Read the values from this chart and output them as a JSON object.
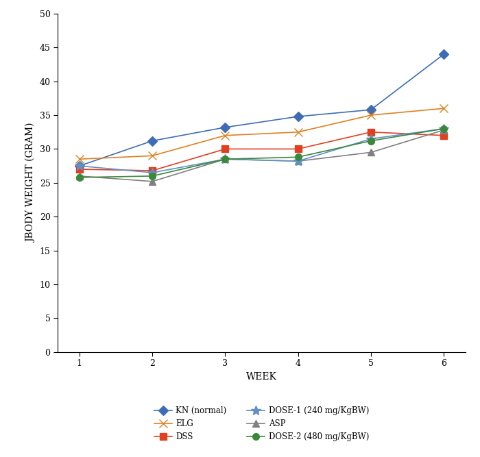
{
  "weeks": [
    1,
    2,
    3,
    4,
    5,
    6
  ],
  "series_order": [
    "KN (normal)",
    "DSS",
    "ASP",
    "ELG",
    "DOSE-1 (240 mg/KgBW)",
    "DOSE-2 (480 mg/KgBW)"
  ],
  "series": {
    "KN (normal)": {
      "values": [
        27.5,
        31.2,
        33.2,
        34.8,
        35.8,
        44.0
      ],
      "color": "#3e6db5",
      "marker": "D",
      "markersize": 7,
      "linewidth": 1.2
    },
    "DSS": {
      "values": [
        27.0,
        26.8,
        30.0,
        30.0,
        32.5,
        32.0
      ],
      "color": "#e04020",
      "marker": "s",
      "markersize": 7,
      "linewidth": 1.2
    },
    "ASP": {
      "values": [
        26.0,
        25.2,
        28.5,
        28.2,
        29.5,
        32.8
      ],
      "color": "#808080",
      "marker": "^",
      "markersize": 7,
      "linewidth": 1.2
    },
    "ELG": {
      "values": [
        28.5,
        29.0,
        32.0,
        32.5,
        35.0,
        36.0
      ],
      "color": "#e08020",
      "marker": "x",
      "markersize": 8,
      "linewidth": 1.2
    },
    "DOSE-1 (240 mg/KgBW)": {
      "values": [
        27.5,
        26.5,
        28.5,
        28.2,
        31.5,
        33.0
      ],
      "color": "#6090c8",
      "marker": "*",
      "markersize": 10,
      "linewidth": 1.2
    },
    "DOSE-2 (480 mg/KgBW)": {
      "values": [
        25.8,
        26.0,
        28.5,
        28.8,
        31.2,
        33.0
      ],
      "color": "#3a883a",
      "marker": "o",
      "markersize": 7,
      "linewidth": 1.2
    }
  },
  "legend_order": [
    0,
    3,
    1,
    4,
    2,
    5
  ],
  "xlabel": "WEEK",
  "ylabel": "JBODY WEIGHT (GRAM)",
  "ylim": [
    0,
    50
  ],
  "yticks": [
    0,
    5,
    10,
    15,
    20,
    25,
    30,
    35,
    40,
    45,
    50
  ],
  "xlim": [
    0.7,
    6.3
  ],
  "xticks": [
    1,
    2,
    3,
    4,
    5,
    6
  ]
}
